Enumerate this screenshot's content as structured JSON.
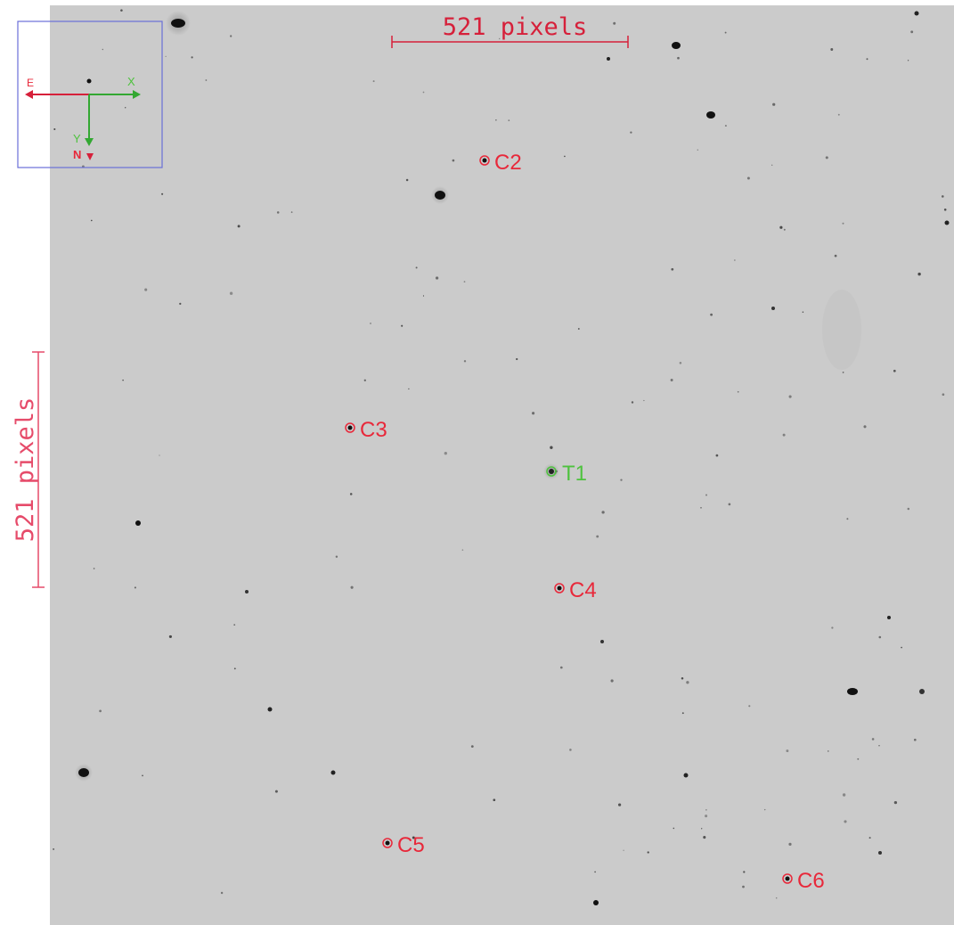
{
  "scale_bar_horizontal": {
    "label": "521 pixels",
    "color": "#d6203a"
  },
  "scale_bar_vertical": {
    "label": "521 pixels",
    "color": "#e64b6a"
  },
  "compass": {
    "east_label": "E",
    "north_label": "N",
    "x_label": "X",
    "y_label": "Y",
    "east_color": "#d6203a",
    "axis_color": "#33a832",
    "frame_color": "#6a6fd8"
  },
  "targets": [
    {
      "id": "target-t1",
      "label": "T1",
      "color": "#4ec23e"
    }
  ],
  "comparison_stars": [
    {
      "id": "comp-c2",
      "label": "C2",
      "color": "#e8283a"
    },
    {
      "id": "comp-c3",
      "label": "C3",
      "color": "#e8283a"
    },
    {
      "id": "comp-c4",
      "label": "C4",
      "color": "#e8283a"
    },
    {
      "id": "comp-c5",
      "label": "C5",
      "color": "#e8283a"
    },
    {
      "id": "comp-c6",
      "label": "C6",
      "color": "#e8283a"
    }
  ],
  "background_color": "#cbcbcb"
}
